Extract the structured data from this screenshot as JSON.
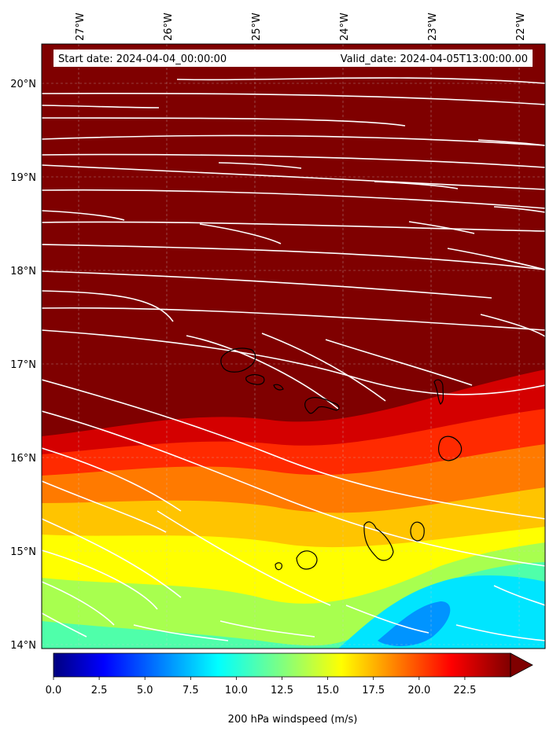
{
  "header": {
    "start_date": "Start date: 2024-04-04_00:00:00",
    "valid_date": "Valid_date: 2024-04-05T13:00:00.00"
  },
  "map": {
    "lon_labels": [
      "27°W",
      "26°W",
      "25°W",
      "24°W",
      "23°W",
      "22°W"
    ],
    "lat_labels": [
      "20°N",
      "19°N",
      "18°N",
      "17°N",
      "16°N",
      "15°N",
      "14°N"
    ],
    "lon_range": [
      -27.4,
      -21.7
    ],
    "lat_range": [
      13.95,
      20.4
    ],
    "gridlines": true,
    "colormap": "jet",
    "islands": [
      "Santo Antão",
      "São Vicente",
      "Santa Luzia",
      "São Nicolau",
      "Sal",
      "Boa Vista",
      "Maio",
      "Santiago",
      "Fogo",
      "Brava"
    ]
  },
  "colorbar": {
    "label": "200 hPa windspeed (m/s)",
    "ticks": [
      "0.0",
      "2.5",
      "5.0",
      "7.5",
      "10.0",
      "12.5",
      "15.0",
      "17.5",
      "20.0",
      "22.5"
    ],
    "tick_values": [
      0,
      2.5,
      5,
      7.5,
      10,
      12.5,
      15,
      17.5,
      20,
      22.5
    ],
    "range": [
      0,
      25
    ],
    "extend": "max"
  }
}
